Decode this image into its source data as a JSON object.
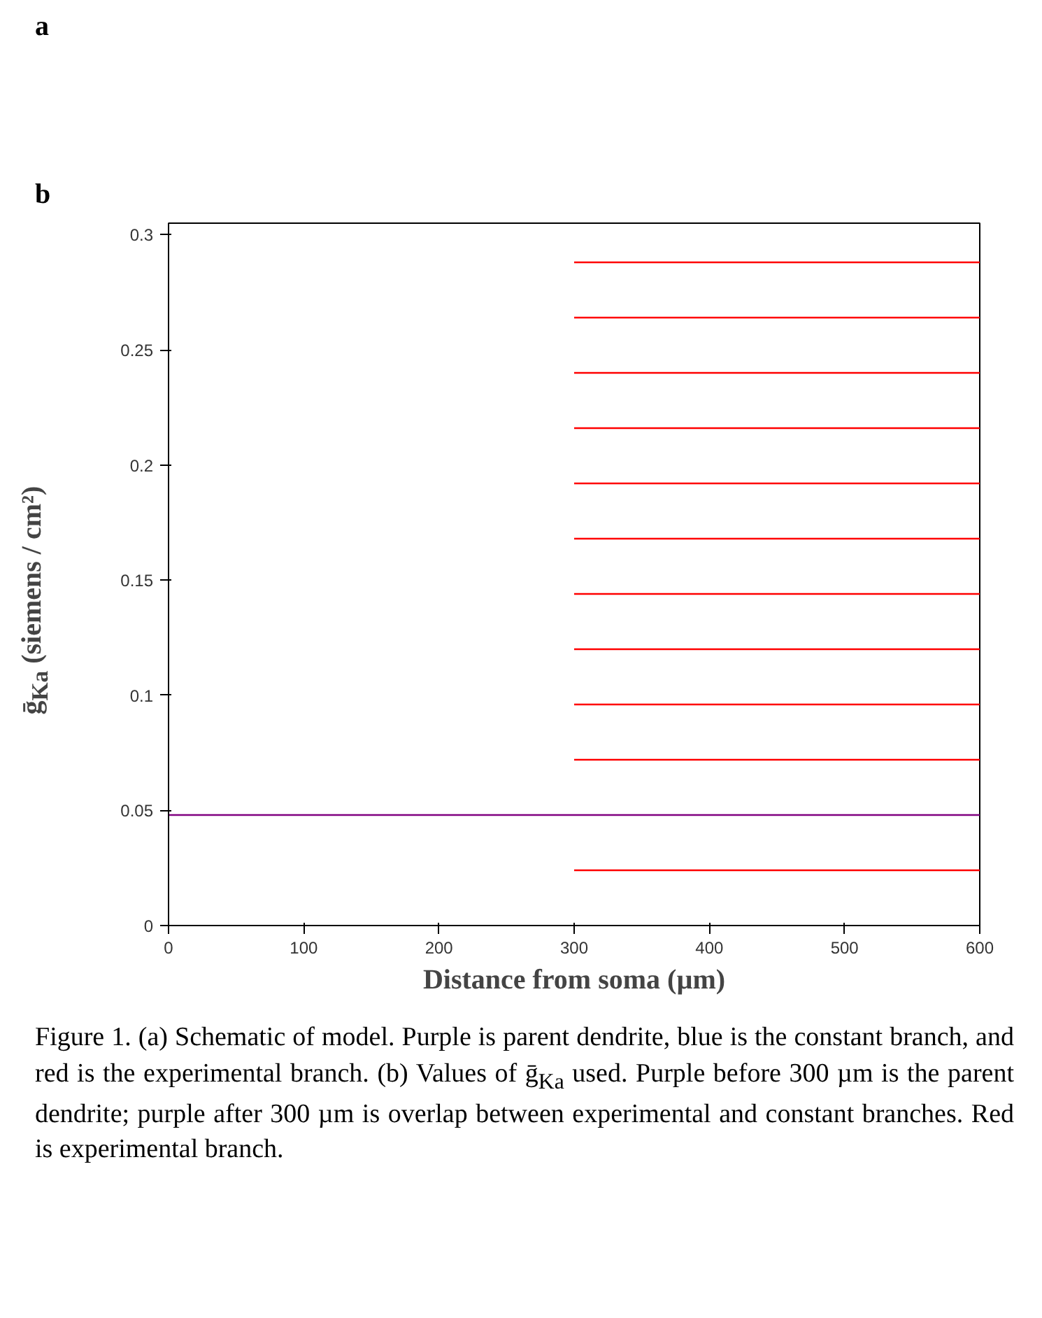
{
  "chart_data": {
    "type": "line",
    "xlabel": "Distance from soma (µm)",
    "ylabel": "ḡ$_{Ka}$ (siemens / cm²)",
    "annotations": [
      "a",
      "b",
      "Figure 1. (a) Schematic of model. Purple is parent dendrite, blue is the constant branch, and red is the experimental branch. (b) Values of ḡ$_{Ka}$ used. Purple before 300 µm is the parent dendrite; purple after 300 µm is overlap between experimental and constant branches. Red is experimental branch."
    ],
    "xlim": [
      0,
      600
    ],
    "ylim": [
      0,
      0.305
    ],
    "xticks": [
      0,
      100,
      200,
      300,
      400,
      500,
      600
    ],
    "yticks": [
      0,
      0.05,
      0.1,
      0.15,
      0.2,
      0.25,
      0.3
    ],
    "grid": false,
    "line_style": "solid",
    "marker": "none",
    "series": [
      {
        "color": "#800080",
        "x": [
          0,
          600
        ],
        "values": [
          0.048,
          0.048
        ]
      },
      {
        "color": "#ff0000",
        "x": [
          300,
          600
        ],
        "values": [
          0.024,
          0.024
        ]
      },
      {
        "color": "#ff0000",
        "x": [
          300,
          600
        ],
        "values": [
          0.072,
          0.072
        ]
      },
      {
        "color": "#ff0000",
        "x": [
          300,
          600
        ],
        "values": [
          0.096,
          0.096
        ]
      },
      {
        "color": "#ff0000",
        "x": [
          300,
          600
        ],
        "values": [
          0.12,
          0.12
        ]
      },
      {
        "color": "#ff0000",
        "x": [
          300,
          600
        ],
        "values": [
          0.144,
          0.144
        ]
      },
      {
        "color": "#ff0000",
        "x": [
          300,
          600
        ],
        "values": [
          0.168,
          0.168
        ]
      },
      {
        "color": "#ff0000",
        "x": [
          300,
          600
        ],
        "values": [
          0.192,
          0.192
        ]
      },
      {
        "color": "#ff0000",
        "x": [
          300,
          600
        ],
        "values": [
          0.216,
          0.216
        ]
      },
      {
        "color": "#ff0000",
        "x": [
          300,
          600
        ],
        "values": [
          0.24,
          0.24
        ]
      },
      {
        "color": "#ff0000",
        "x": [
          300,
          600
        ],
        "values": [
          0.264,
          0.264
        ]
      },
      {
        "color": "#ff0000",
        "x": [
          300,
          600
        ],
        "values": [
          0.288,
          0.288
        ]
      }
    ]
  }
}
